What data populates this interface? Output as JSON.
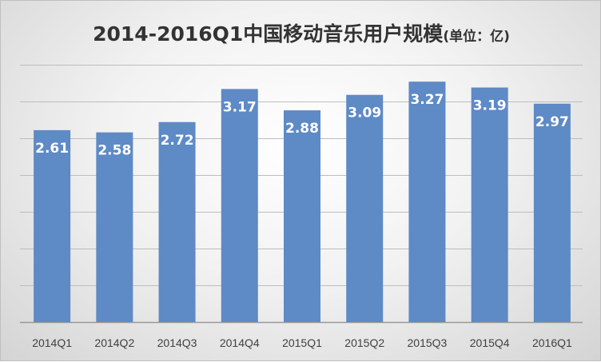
{
  "chart_data": {
    "type": "bar",
    "title": "2014-2016Q1中国移动音乐用户规模",
    "title_suffix": "(单位：亿)",
    "categories": [
      "2014Q1",
      "2014Q2",
      "2014Q3",
      "2014Q4",
      "2015Q1",
      "2015Q2",
      "2015Q3",
      "2015Q4",
      "2016Q1"
    ],
    "values": [
      2.61,
      2.58,
      2.72,
      3.17,
      2.88,
      3.09,
      3.27,
      3.19,
      2.97
    ],
    "ylim": [
      0,
      3.5
    ],
    "ytick_step": 0.5,
    "grid": true,
    "legend": "none",
    "data_labels": "inside-top",
    "colors": {
      "bar": "#5e8ac6",
      "grid": "#bdbdbd",
      "label": "#ffffff",
      "tick": "#404040"
    }
  }
}
